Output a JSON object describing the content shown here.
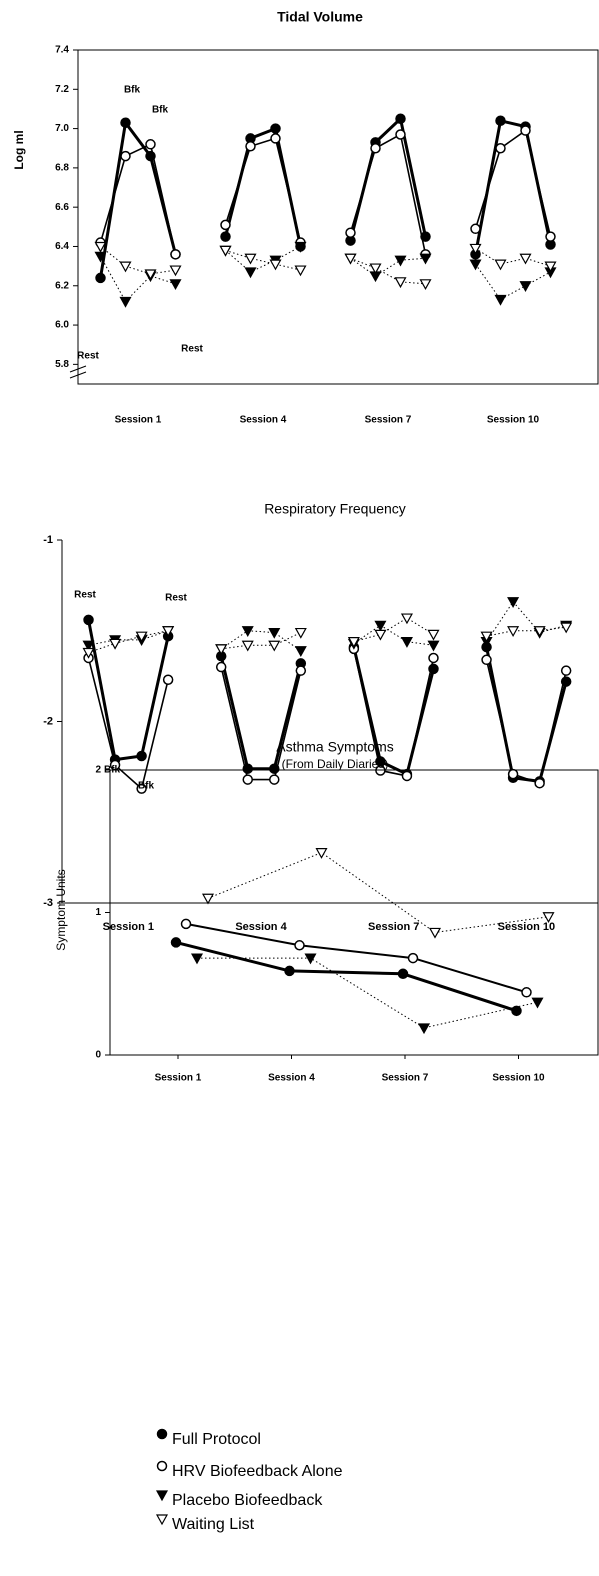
{
  "chart_data": [
    {
      "type": "line",
      "title": "Tidal Volume",
      "y_label": "Log ml",
      "x": [
        1,
        2,
        3,
        4,
        5,
        6,
        7,
        8,
        9,
        10,
        11,
        12,
        13,
        14,
        15,
        16,
        17,
        18,
        19
      ],
      "xlim": [
        0.1,
        20.9
      ],
      "xticks": [
        {
          "value": 2.5,
          "label": "Session 1"
        },
        {
          "value": 7.5,
          "label": "Session 4"
        },
        {
          "value": 12.5,
          "label": "Session 7"
        },
        {
          "value": 17.5,
          "label": "Session 10"
        }
      ],
      "ylim": [
        5.7,
        7.4
      ],
      "yticks": [
        5.8,
        {
          "value": 6,
          "label": "6.0"
        },
        6.2,
        6.4,
        6.6,
        6.8,
        {
          "value": 7,
          "label": "7.0"
        },
        7.2,
        7.4
      ],
      "annotations": [
        "Bfk",
        "Bfk",
        "Rest",
        "Rest"
      ],
      "series": [
        {
          "color": "#000000",
          "marker": "filled-circle",
          "line": "solid",
          "width": 3,
          "values": [
            6.24,
            7.03,
            6.86,
            6.36,
            null,
            6.45,
            6.95,
            7.0,
            6.4,
            null,
            6.43,
            6.93,
            7.05,
            6.45,
            null,
            6.36,
            7.04,
            7.01,
            6.41
          ]
        },
        {
          "color": "#000000",
          "marker": "open-circle",
          "line": "solid",
          "width": 1.6,
          "values": [
            6.42,
            6.86,
            6.92,
            6.36,
            null,
            6.51,
            6.91,
            6.95,
            6.42,
            null,
            6.47,
            6.9,
            6.97,
            6.36,
            null,
            6.49,
            6.9,
            6.99,
            6.45
          ]
        },
        {
          "color": "#000000",
          "marker": "filled-triangle",
          "line": "dotted",
          "width": 1,
          "values": [
            6.35,
            6.12,
            6.25,
            6.21,
            null,
            6.38,
            6.27,
            6.33,
            6.4,
            null,
            6.34,
            6.25,
            6.33,
            6.34,
            null,
            6.31,
            6.13,
            6.2,
            6.27
          ]
        },
        {
          "color": "#000000",
          "marker": "open-triangle",
          "line": "dotted",
          "width": 1,
          "values": [
            6.4,
            6.3,
            6.26,
            6.28,
            null,
            6.38,
            6.34,
            6.31,
            6.28,
            null,
            6.34,
            6.29,
            6.22,
            6.21,
            null,
            6.39,
            6.31,
            6.34,
            6.3
          ]
        }
      ]
    },
    {
      "type": "line",
      "title": "Respiratory Frequency",
      "x": [
        1,
        2,
        3,
        4,
        5,
        6,
        7,
        8,
        9,
        10,
        11,
        12,
        13,
        14,
        15,
        16,
        17,
        18,
        19
      ],
      "xlim": [
        0,
        20.2
      ],
      "xticks": [
        {
          "value": 2.5,
          "label": "Session 1"
        },
        {
          "value": 7.5,
          "label": "Session 4"
        },
        {
          "value": 12.5,
          "label": "Session 7"
        },
        {
          "value": 17.5,
          "label": "Session 10"
        }
      ],
      "ylim": [
        -3,
        -1
      ],
      "yticks": [
        -3,
        -2,
        -1
      ],
      "annotations": [
        "Rest",
        "Rest",
        "Bfk",
        "Bfk"
      ],
      "series": [
        {
          "color": "#000000",
          "marker": "filled-circle",
          "line": "solid",
          "width": 3,
          "values": [
            -1.44,
            -2.21,
            -2.19,
            -1.53,
            null,
            -1.64,
            -2.26,
            -2.26,
            -1.68,
            null,
            -1.59,
            -2.22,
            -2.29,
            -1.71,
            null,
            -1.59,
            -2.31,
            -2.33,
            -1.78
          ]
        },
        {
          "color": "#000000",
          "marker": "open-circle",
          "line": "solid",
          "width": 1.6,
          "values": [
            -1.65,
            -2.24,
            -2.37,
            -1.77,
            null,
            -1.7,
            -2.32,
            -2.32,
            -1.72,
            null,
            -1.6,
            -2.27,
            -2.3,
            -1.65,
            null,
            -1.66,
            -2.29,
            -2.34,
            -1.72
          ]
        },
        {
          "color": "#000000",
          "marker": "filled-triangle",
          "line": "dotted",
          "width": 1,
          "values": [
            -1.58,
            -1.55,
            -1.55,
            -1.5,
            null,
            -1.6,
            -1.5,
            -1.51,
            -1.61,
            null,
            -1.57,
            -1.47,
            -1.56,
            -1.58,
            null,
            -1.56,
            -1.34,
            -1.51,
            -1.47
          ]
        },
        {
          "color": "#000000",
          "marker": "open-triangle",
          "line": "dotted",
          "width": 1,
          "values": [
            -1.62,
            -1.57,
            -1.53,
            -1.5,
            null,
            -1.6,
            -1.58,
            -1.58,
            -1.51,
            null,
            -1.56,
            -1.52,
            -1.43,
            -1.52,
            null,
            -1.53,
            -1.5,
            -1.5,
            -1.48
          ]
        }
      ]
    },
    {
      "type": "line",
      "title": "Asthma Symptoms",
      "subtitle": "(From Daily Diaries)",
      "y_label": "Symptom Units",
      "categories": [
        "Session 1",
        "Session 4",
        "Session 7",
        "Session 10"
      ],
      "ylim": [
        0,
        2
      ],
      "yticks": [
        0,
        1,
        2
      ],
      "legend": "bottom",
      "series": [
        {
          "name": "Full Protocol",
          "color": "#000000",
          "marker": "filled-circle",
          "line": "solid",
          "width": 3,
          "values": [
            0.79,
            0.59,
            0.57,
            0.31
          ]
        },
        {
          "name": "HRV Biofeedback Alone",
          "color": "#000000",
          "marker": "open-circle",
          "line": "solid",
          "width": 2,
          "values": [
            0.92,
            0.77,
            0.68,
            0.44
          ]
        },
        {
          "name": "Placebo Biofeedback",
          "color": "#000000",
          "marker": "filled-triangle",
          "line": "dotted",
          "width": 1,
          "values": [
            0.68,
            0.68,
            0.19,
            0.37
          ]
        },
        {
          "name": "Waiting List",
          "color": "#000000",
          "marker": "open-triangle",
          "line": "dotted",
          "width": 1,
          "values": [
            1.1,
            1.42,
            0.86,
            0.97
          ]
        }
      ]
    }
  ]
}
